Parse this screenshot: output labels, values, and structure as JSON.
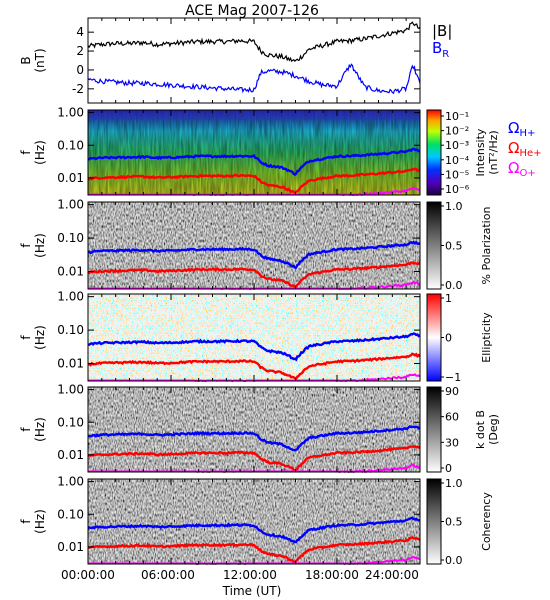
{
  "chart_data": {
    "title": "ACE Mag 2007-126",
    "xlabel": "Time (UT)",
    "x_ticks": [
      "00:00:00",
      "06:00:00",
      "12:00:00",
      "18:00:00",
      "24:00:00"
    ],
    "xlim_hours": [
      0,
      24
    ],
    "panels": [
      {
        "type": "line",
        "ylabel": "B",
        "yunit": "(nT)",
        "ylim": [
          -3.5,
          5.5
        ],
        "yticks": [
          "4",
          "2",
          "0",
          "-2"
        ],
        "legend": [
          "|B|",
          "B"
        ],
        "legend_sub": [
          "",
          "R"
        ],
        "series": [
          {
            "name": "|B|",
            "color": "#000000",
            "x": [
              0,
              1,
              2,
              3,
              4,
              5,
              6,
              7,
              8,
              9,
              10,
              11,
              12,
              12.5,
              13,
              14,
              15,
              15.5,
              16,
              17,
              18,
              19,
              20,
              21,
              22,
              23,
              23.5,
              24
            ],
            "y": [
              2.5,
              2.7,
              2.8,
              2.8,
              2.9,
              2.7,
              2.8,
              2.9,
              3.0,
              3.0,
              3.0,
              3.1,
              3.0,
              2.0,
              1.6,
              1.4,
              0.9,
              1.5,
              2.2,
              2.6,
              3.0,
              3.1,
              3.3,
              3.6,
              3.9,
              4.2,
              5.0,
              4.3
            ]
          },
          {
            "name": "B",
            "color": "#0000ff",
            "x": [
              0,
              1,
              2,
              3,
              4,
              5,
              6,
              7,
              8,
              9,
              10,
              11,
              12,
              12.5,
              13,
              14,
              15,
              15.5,
              16,
              17,
              18,
              18.5,
              19,
              20,
              21,
              22,
              23,
              23.5,
              24
            ],
            "y": [
              -1.0,
              -1.2,
              -1.3,
              -1.4,
              -1.4,
              -1.5,
              -1.6,
              -1.7,
              -1.8,
              -1.9,
              -2.0,
              -2.1,
              -2.1,
              -0.3,
              -0.1,
              -0.2,
              -0.6,
              -0.9,
              -1.2,
              -1.6,
              -1.7,
              -0.5,
              0.6,
              -1.8,
              -2.2,
              -2.3,
              -2.0,
              0.5,
              -1.5
            ]
          }
        ]
      },
      {
        "type": "heatmap",
        "style": "intensity",
        "ylabel": "f",
        "yunit": "(Hz)",
        "ylim": [
          0.003,
          1.2
        ],
        "yticks": [
          "1.00",
          "0.10",
          "0.01"
        ],
        "colorbar_label": "Intensity",
        "colorbar_unit": "(nT²/Hz)",
        "colorbar_ticks": [
          "10⁻¹",
          "10⁻²",
          "10⁻³",
          "10⁻⁴",
          "10⁻⁵",
          "10⁻⁶"
        ],
        "legend": [
          "Ω",
          "Ω",
          "Ω"
        ],
        "legend_sub": [
          "H+",
          "He+",
          "O+"
        ],
        "legend_colors": [
          "#0000ff",
          "#ff0000",
          "#ff00ff"
        ]
      },
      {
        "type": "heatmap",
        "style": "gray",
        "ylabel": "f",
        "yunit": "(Hz)",
        "ylim": [
          0.003,
          1.2
        ],
        "yticks": [
          "1.00",
          "0.10",
          "0.01"
        ],
        "colorbar_label": "% Polarization",
        "colorbar_ticks": [
          "1.0",
          "0.5",
          "0.0"
        ]
      },
      {
        "type": "heatmap",
        "style": "ellipticity",
        "ylabel": "f",
        "yunit": "(Hz)",
        "ylim": [
          0.003,
          1.2
        ],
        "yticks": [
          "1.00",
          "0.10",
          "0.01"
        ],
        "colorbar_label": "Ellipticity",
        "colorbar_ticks": [
          "1",
          "0",
          "−1"
        ]
      },
      {
        "type": "heatmap",
        "style": "gray",
        "ylabel": "f",
        "yunit": "(Hz)",
        "ylim": [
          0.003,
          1.2
        ],
        "yticks": [
          "1.00",
          "0.10",
          "0.01"
        ],
        "colorbar_label": "k dot B",
        "colorbar_unit": "(Deg)",
        "colorbar_ticks": [
          "90",
          "60",
          "30",
          "0"
        ]
      },
      {
        "type": "heatmap",
        "style": "gray",
        "ylabel": "f",
        "yunit": "(Hz)",
        "ylim": [
          0.003,
          1.2
        ],
        "yticks": [
          "1.00",
          "0.10",
          "0.01"
        ],
        "colorbar_label": "Coherency",
        "colorbar_ticks": [
          "1.0",
          "0.5",
          "0.0"
        ]
      }
    ],
    "gyro_lines": {
      "x": [
        0,
        1,
        2,
        3,
        4,
        5,
        6,
        7,
        8,
        9,
        10,
        11,
        12,
        12.5,
        13,
        14,
        15,
        15.5,
        16,
        17,
        18,
        19,
        20,
        21,
        22,
        23,
        23.5,
        24
      ],
      "H+": [
        0.038,
        0.041,
        0.042,
        0.043,
        0.044,
        0.041,
        0.042,
        0.044,
        0.046,
        0.046,
        0.046,
        0.047,
        0.046,
        0.03,
        0.024,
        0.021,
        0.013,
        0.022,
        0.033,
        0.039,
        0.046,
        0.047,
        0.05,
        0.054,
        0.059,
        0.064,
        0.076,
        0.066
      ],
      "He+": [
        0.0095,
        0.0102,
        0.0105,
        0.0108,
        0.011,
        0.0102,
        0.0105,
        0.011,
        0.0115,
        0.0115,
        0.0115,
        0.0118,
        0.0115,
        0.0076,
        0.006,
        0.0053,
        0.0034,
        0.0056,
        0.0083,
        0.0098,
        0.0115,
        0.0118,
        0.0126,
        0.0136,
        0.0148,
        0.016,
        0.019,
        0.0165
      ],
      "O+": [
        0.0024,
        0.0026,
        0.0026,
        0.0027,
        0.0028,
        0.0026,
        0.0026,
        0.0028,
        0.0029,
        0.0029,
        0.0029,
        0.003,
        0.0029,
        0.0019,
        0.0015,
        0.0013,
        0.0009,
        0.0014,
        0.0021,
        0.0025,
        0.0029,
        0.003,
        0.0032,
        0.0034,
        0.0037,
        0.004,
        0.0048,
        0.0041
      ]
    }
  }
}
